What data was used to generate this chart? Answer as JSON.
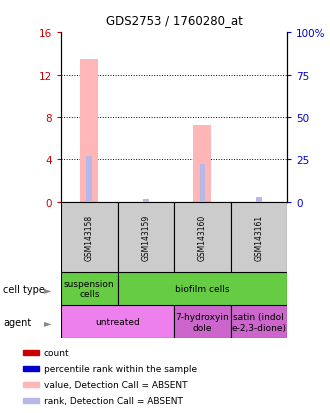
{
  "title": "GDS2753 / 1760280_at",
  "samples": [
    "GSM143158",
    "GSM143159",
    "GSM143160",
    "GSM143161"
  ],
  "bar_values": [
    13.5,
    0.0,
    7.2,
    0.0
  ],
  "bar_color_absent": "#ffb6b6",
  "rank_values_pct": [
    27.0,
    1.5,
    22.5,
    3.0
  ],
  "rank_color_absent": "#b8b8e8",
  "ylim_left": [
    0,
    16
  ],
  "ylim_right": [
    0,
    100
  ],
  "yticks_left": [
    0,
    4,
    8,
    12,
    16
  ],
  "yticks_right": [
    0,
    25,
    50,
    75,
    100
  ],
  "ytick_labels_right": [
    "0",
    "25",
    "50",
    "75",
    "100%"
  ],
  "left_tick_color": "#cc0000",
  "right_tick_color": "#0000cc",
  "sample_box_color": "#cccccc",
  "cell_type_row": {
    "label": "cell type",
    "groups": [
      {
        "text": "suspension\ncells",
        "color": "#66cc44",
        "span": [
          0,
          1
        ]
      },
      {
        "text": "biofilm cells",
        "color": "#66cc44",
        "span": [
          1,
          4
        ]
      }
    ]
  },
  "agent_row": {
    "label": "agent",
    "groups": [
      {
        "text": "untreated",
        "color": "#ee80ee",
        "span": [
          0,
          2
        ]
      },
      {
        "text": "7-hydroxyin\ndole",
        "color": "#cc66cc",
        "span": [
          2,
          3
        ]
      },
      {
        "text": "satin (indol\ne-2,3-dione)",
        "color": "#cc66cc",
        "span": [
          3,
          4
        ]
      }
    ]
  },
  "legend_items": [
    {
      "color": "#cc0000",
      "label": "count"
    },
    {
      "color": "#0000cc",
      "label": "percentile rank within the sample"
    },
    {
      "color": "#ffb6b6",
      "label": "value, Detection Call = ABSENT"
    },
    {
      "color": "#b8b8e8",
      "label": "rank, Detection Call = ABSENT"
    }
  ]
}
